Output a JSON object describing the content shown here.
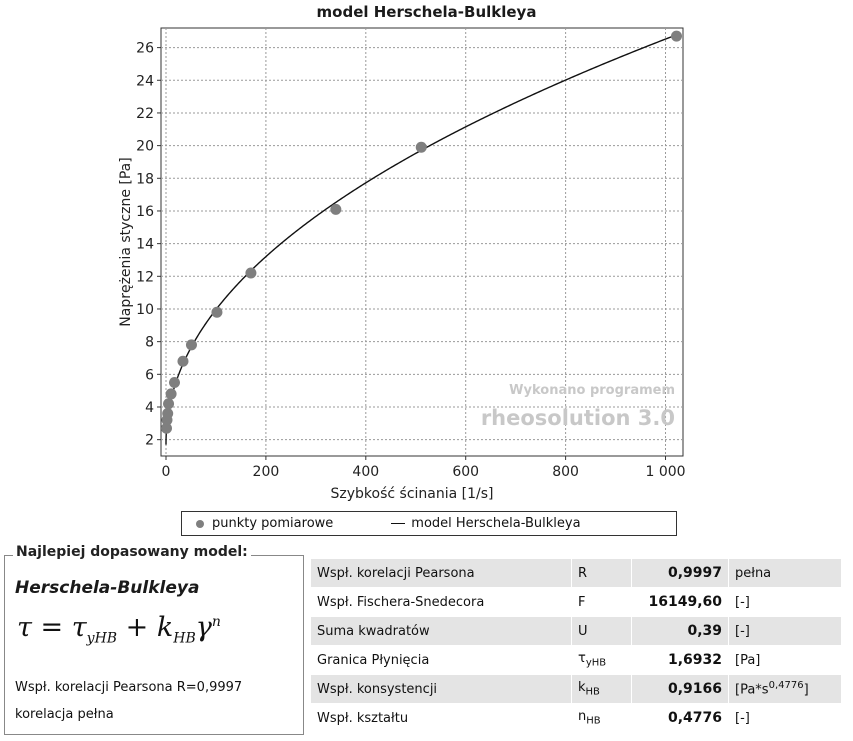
{
  "chart_data": {
    "type": "scatter",
    "title": "model Herschela-Bulkleya",
    "xlabel": "Szybkość ścinania [1/s]",
    "ylabel": "Naprężenia styczne [Pa]",
    "xlim": [
      -10,
      1035
    ],
    "ylim": [
      1,
      27.2
    ],
    "xticks": [
      0,
      200,
      400,
      600,
      800,
      1000
    ],
    "xtick_labels": [
      "0",
      "200",
      "400",
      "600",
      "800",
      "1 000"
    ],
    "yticks": [
      2,
      4,
      6,
      8,
      10,
      12,
      14,
      16,
      18,
      20,
      22,
      24,
      26
    ],
    "ytick_labels": [
      "2",
      "4",
      "6",
      "8",
      "10",
      "12",
      "14",
      "16",
      "18",
      "20",
      "22",
      "24",
      "26"
    ],
    "grid": true,
    "series": [
      {
        "name": "punkty pomiarowe",
        "type": "scatter",
        "x": [
          1,
          2,
          3.4,
          5.1,
          10.2,
          17,
          34,
          51,
          102,
          170,
          340,
          511,
          1022
        ],
        "y": [
          2.7,
          3.2,
          3.6,
          4.2,
          4.8,
          5.5,
          6.8,
          7.8,
          9.8,
          12.2,
          16.1,
          19.9,
          26.7
        ]
      },
      {
        "name": "model Herschela-Bulkleya",
        "type": "line",
        "model": {
          "tau0": 1.6932,
          "k": 0.9166,
          "n": 0.4776
        }
      }
    ],
    "legend": "bottom",
    "watermark": [
      "Wykonano programem",
      "rheosolution 3.0"
    ]
  },
  "model_panel": {
    "header": "Najlepiej dopasowany model:",
    "name": "Herschela-Bulkleya",
    "pearson_line": "Wspł. korelacji Pearsona R=0,9997",
    "correlation_line": "korelacja pełna"
  },
  "stats": [
    {
      "label": "Wspł. korelacji Pearsona",
      "symbol": "R",
      "sub": "",
      "value": "0,9997",
      "unit": "pełna"
    },
    {
      "label": "Wspł. Fischera-Snedecora",
      "symbol": "F",
      "sub": "",
      "value": "16149,60",
      "unit": "[-]"
    },
    {
      "label": "Suma kwadratów",
      "symbol": "U",
      "sub": "",
      "value": "0,39",
      "unit": "[-]"
    },
    {
      "label": "Granica Płynięcia",
      "symbol": "τ",
      "sub": "yHB",
      "value": "1,6932",
      "unit": "[Pa]"
    },
    {
      "label": "Wspł. konsystencji",
      "symbol": "k",
      "sub": "HB",
      "value": "0,9166",
      "unit": "[Pa*s",
      "unit_sup": "0,4776",
      "unit_end": "]"
    },
    {
      "label": "Wspł. kształtu",
      "symbol": "n",
      "sub": "HB",
      "value": "0,4776",
      "unit": "[-]"
    }
  ]
}
